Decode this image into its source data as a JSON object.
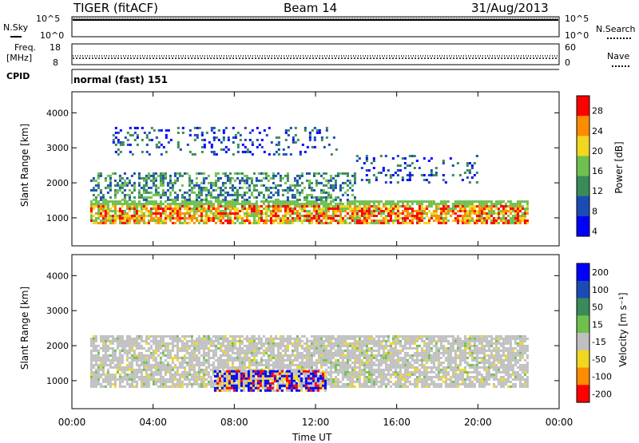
{
  "header": {
    "title": "TIGER (fitACF)",
    "beam": "Beam 14",
    "date": "31/Aug/2013"
  },
  "noise_panel": {
    "left_label": "N.Sky",
    "right_label": "N.Search",
    "left_ticks": [
      "10^5",
      "10^0"
    ],
    "right_ticks": [
      "10^5",
      "10^0"
    ]
  },
  "freq_panel": {
    "left_label_1": "Freq.",
    "left_label_2": "[MHz]",
    "right_label": "Nave",
    "left_ticks": [
      "18",
      "8"
    ],
    "right_ticks": [
      "60",
      "0"
    ]
  },
  "cpid": {
    "label": "CPID",
    "value": "normal (fast) 151"
  },
  "x_axis": {
    "label": "Time UT",
    "ticks": [
      "00:00",
      "04:00",
      "08:00",
      "12:00",
      "16:00",
      "20:00",
      "00:00"
    ]
  },
  "chart_data": [
    {
      "type": "heatmap",
      "parameter": "power",
      "ylabel": "Slant Range [km]",
      "yticks": [
        1000,
        2000,
        3000,
        4000
      ],
      "ylim": [
        200,
        4600
      ],
      "xlim_hours": [
        0,
        24
      ],
      "colorbar": {
        "label": "Power [dB]",
        "ticks": [
          4,
          8,
          12,
          16,
          20,
          24,
          28
        ],
        "colors": [
          "#0000ff",
          "#1a4cb4",
          "#3a8a5a",
          "#70c050",
          "#f0d820",
          "#ff8c00",
          "#ff0000"
        ]
      },
      "echo_bands": [
        {
          "time": [
            0.9,
            22.5
          ],
          "range": [
            850,
            1500
          ],
          "level": "high"
        },
        {
          "time": [
            0.9,
            14.0
          ],
          "range": [
            1500,
            2300
          ],
          "level": "medium"
        },
        {
          "time": [
            14.0,
            20.0
          ],
          "range": [
            2000,
            2800
          ],
          "level": "low"
        },
        {
          "time": [
            2.0,
            13.0
          ],
          "range": [
            2800,
            3600
          ],
          "level": "low"
        }
      ]
    },
    {
      "type": "heatmap",
      "parameter": "velocity",
      "ylabel": "Slant Range [km]",
      "yticks": [
        1000,
        2000,
        3000,
        4000
      ],
      "ylim": [
        200,
        4600
      ],
      "xlim_hours": [
        0,
        24
      ],
      "colorbar": {
        "label": "Velocity [m s⁻¹]",
        "ticks": [
          200,
          100,
          50,
          15,
          -15,
          -50,
          -100,
          -200
        ],
        "colors": [
          "#0000ff",
          "#1a4cb4",
          "#3a8a5a",
          "#70c050",
          "#c0c0c0",
          "#f0d820",
          "#ff8c00",
          "#ff0000"
        ]
      },
      "echo_bands": [
        {
          "time": [
            0.9,
            22.5
          ],
          "range": [
            850,
            2300
          ],
          "level": "ground-scatter"
        },
        {
          "time": [
            7.0,
            12.5
          ],
          "range": [
            700,
            1300
          ],
          "level": "mixed-flow"
        }
      ]
    }
  ]
}
